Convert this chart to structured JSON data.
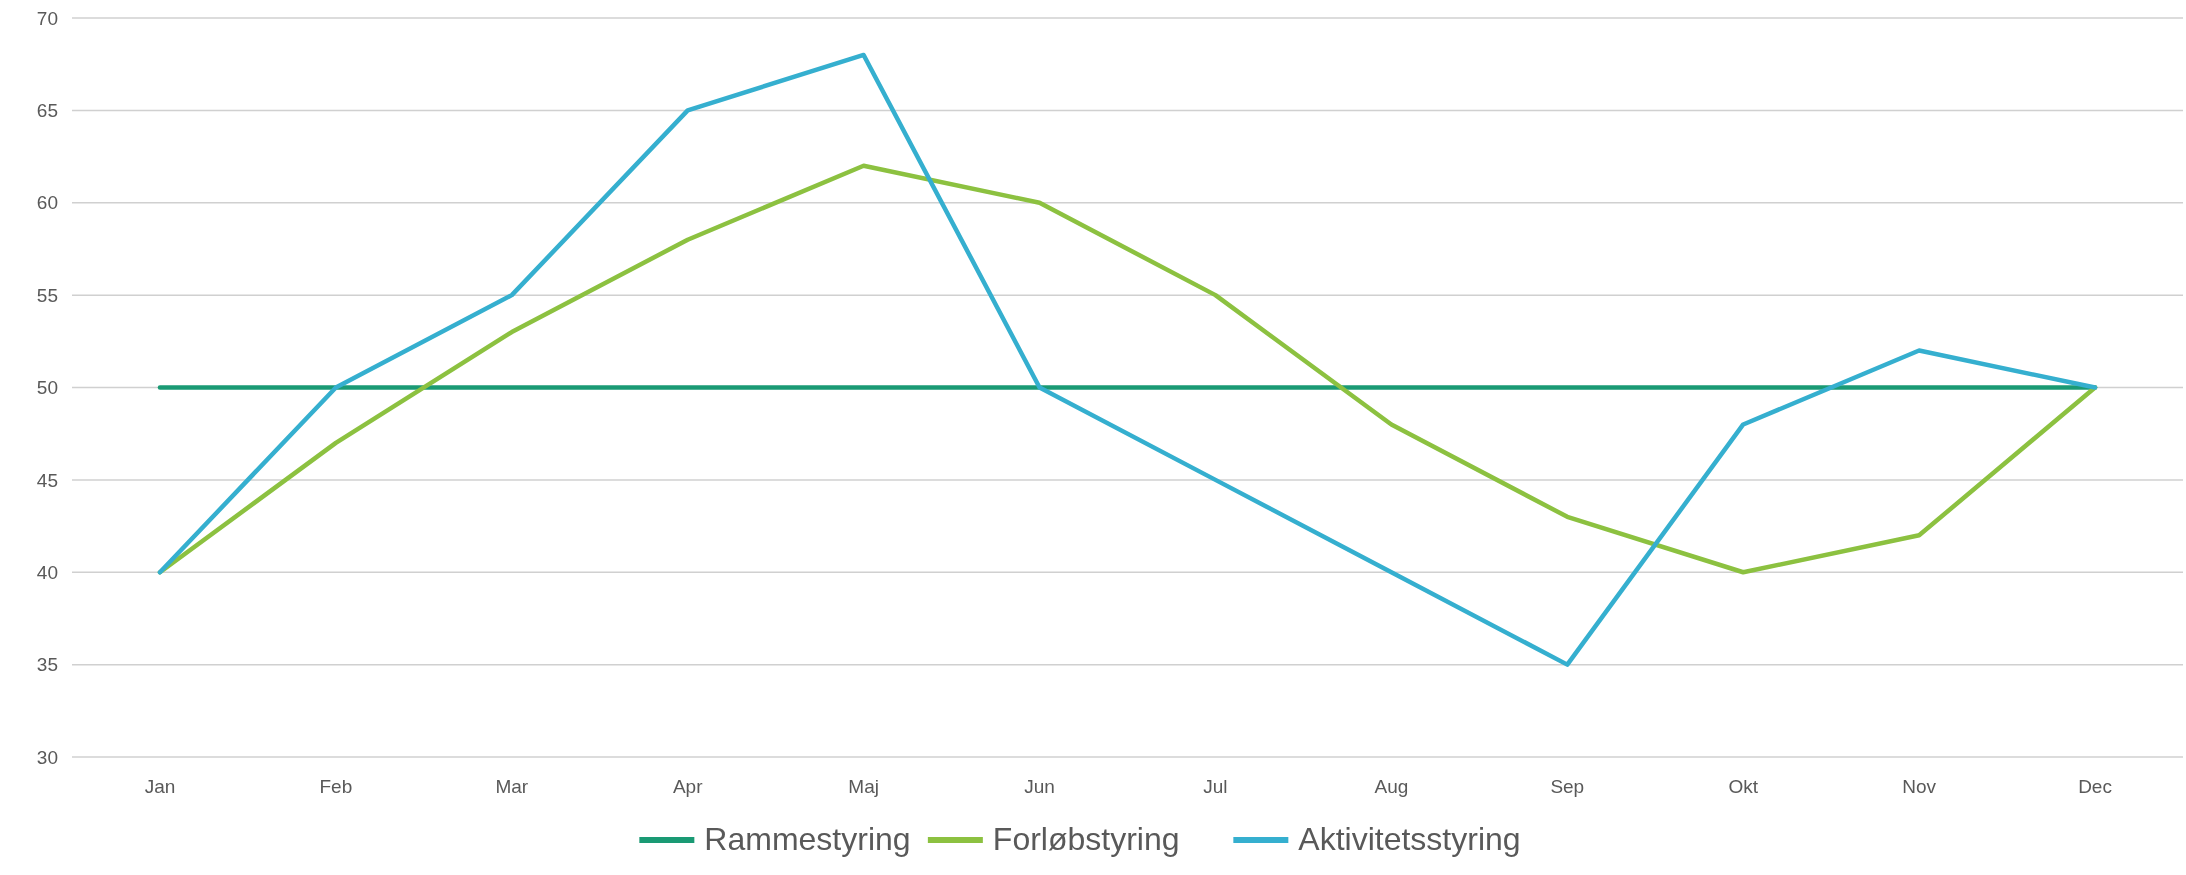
{
  "chart_data": {
    "type": "line",
    "categories": [
      "Jan",
      "Feb",
      "Mar",
      "Apr",
      "Maj",
      "Jun",
      "Jul",
      "Aug",
      "Sep",
      "Okt",
      "Nov",
      "Dec"
    ],
    "series": [
      {
        "name": "Rammestyring",
        "color": "#1a9a74",
        "values": [
          50,
          50,
          50,
          50,
          50,
          50,
          50,
          50,
          50,
          50,
          50,
          50
        ]
      },
      {
        "name": "Forløbstyring",
        "color": "#8cc140",
        "values": [
          40,
          47,
          53,
          58,
          62,
          60,
          55,
          48,
          43,
          40,
          42,
          50
        ]
      },
      {
        "name": "Aktivitetsstyring",
        "color": "#35afcf",
        "values": [
          40,
          50,
          55,
          65,
          68,
          50,
          45,
          40,
          35,
          48,
          52,
          50
        ]
      }
    ],
    "ylim": [
      30,
      70
    ],
    "yticks": [
      30,
      35,
      40,
      45,
      50,
      55,
      60,
      65,
      70
    ],
    "grid": "y",
    "legend": "bottom",
    "marker": "none",
    "line_style": "solid"
  }
}
